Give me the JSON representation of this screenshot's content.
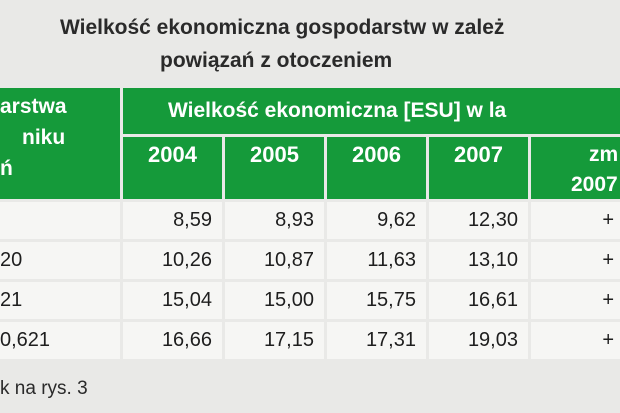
{
  "title": {
    "line1": "Wielkość ekonomiczna gospodarstw w zależ",
    "line2": "powiązań z otoczeniem"
  },
  "table": {
    "left_header": [
      "arstwa",
      "niku",
      "ń"
    ],
    "group_header": "Wielkość ekonomiczna [ESU] w la",
    "years": [
      "2004",
      "2005",
      "2006",
      "2007"
    ],
    "change_header": [
      "zm",
      "2007"
    ],
    "rows": [
      {
        "label": "",
        "values": [
          "8,59",
          "8,93",
          "9,62",
          "12,30"
        ],
        "change": "+"
      },
      {
        "label": "20",
        "values": [
          "10,26",
          "10,87",
          "11,63",
          "13,10"
        ],
        "change": "+"
      },
      {
        "label": "21",
        "values": [
          "15,04",
          "15,00",
          "15,75",
          "16,61"
        ],
        "change": "+"
      },
      {
        "label": "0,621",
        "values": [
          "16,66",
          "17,15",
          "17,31",
          "19,03"
        ],
        "change": "+"
      }
    ]
  },
  "note": "k na rys. 3"
}
